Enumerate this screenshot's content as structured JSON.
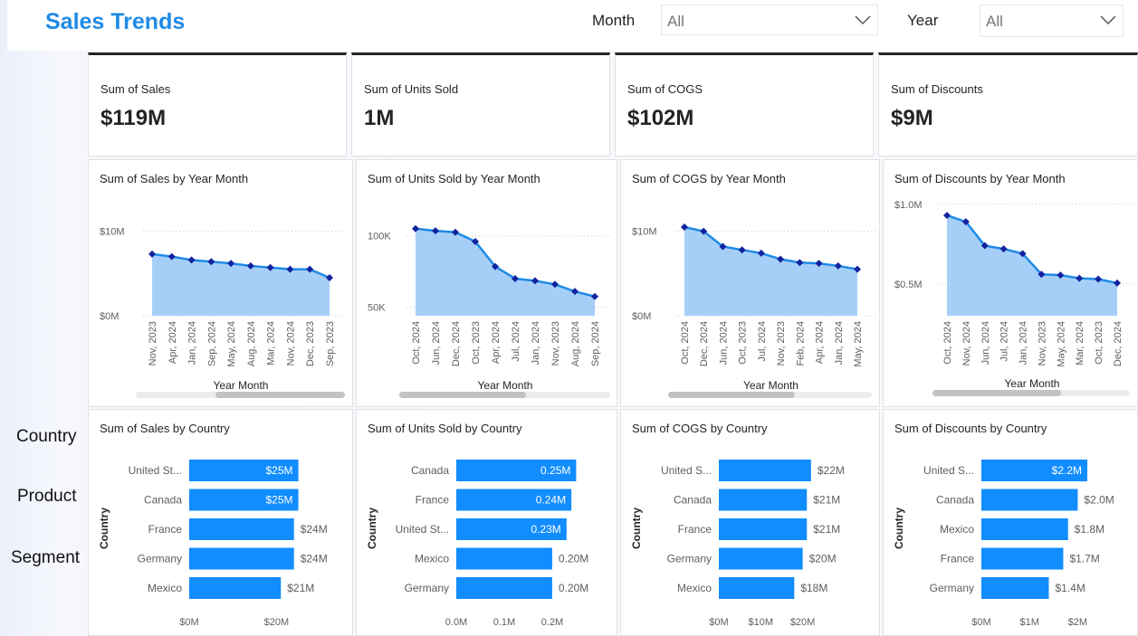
{
  "header": {
    "title": "Sales Trends",
    "month_label": "Month",
    "month_value": "All",
    "year_label": "Year",
    "year_value": "All"
  },
  "nav": {
    "country": "Country",
    "product": "Product",
    "segment": "Segment"
  },
  "kpis": [
    {
      "label": "Sum of Sales",
      "value": "$119M"
    },
    {
      "label": "Sum of Units Sold",
      "value": "1M"
    },
    {
      "label": "Sum of COGS",
      "value": "$102M"
    },
    {
      "label": "Sum of Discounts",
      "value": "$9M"
    }
  ],
  "colors": {
    "accent": "#1f8ae6",
    "bar": "#118dff",
    "line": "#1f8ae6",
    "area": "#a6cff7",
    "marker": "#12239e"
  },
  "chart_data": [
    {
      "type": "area",
      "title": "Sum of Sales by Year Month",
      "xlabel": "Year Month",
      "categories": [
        "Nov, 2023",
        "Apr, 2024",
        "Jan, 2024",
        "Sep, 2024",
        "May, 2024",
        "Aug, 2024",
        "Mar, 2024",
        "Nov, 2024",
        "Dec, 2023",
        "Sep, 2023"
      ],
      "values": [
        7.3,
        7.0,
        6.6,
        6.4,
        6.2,
        5.9,
        5.7,
        5.5,
        5.5,
        4.5
      ],
      "ylim": [
        0,
        12
      ],
      "yticks": [
        {
          "v": 0,
          "label": "$0M"
        },
        {
          "v": 10,
          "label": "$10M"
        }
      ],
      "scroll": {
        "start": 0.38,
        "end": 1.0
      }
    },
    {
      "type": "area",
      "title": "Sum of Units Sold by Year Month",
      "xlabel": "Year Month",
      "categories": [
        "Oct, 2024",
        "Jun, 2024",
        "Dec, 2024",
        "Oct, 2023",
        "Apr, 2024",
        "Jul, 2024",
        "Jan, 2024",
        "Nov, 2023",
        "Aug, 2024",
        "Sep, 2024"
      ],
      "values": [
        105000,
        103500,
        102500,
        96000,
        78500,
        70000,
        68500,
        66000,
        61000,
        57500
      ],
      "ylim": [
        44000,
        115000
      ],
      "yticks": [
        {
          "v": 50000,
          "label": "50K"
        },
        {
          "v": 100000,
          "label": "100K"
        }
      ],
      "scroll": {
        "start": 0.0,
        "end": 0.6
      }
    },
    {
      "type": "area",
      "title": "Sum of COGS by Year Month",
      "xlabel": "Year Month",
      "categories": [
        "Oct, 2024",
        "Dec, 2024",
        "Jun, 2024",
        "Oct, 2023",
        "Jul, 2024",
        "Nov, 2023",
        "Feb, 2024",
        "Apr, 2024",
        "Jan, 2024",
        "May, 2024"
      ],
      "values": [
        10.5,
        10.0,
        8.2,
        7.8,
        7.4,
        6.7,
        6.3,
        6.2,
        5.9,
        5.5
      ],
      "ylim": [
        0,
        12
      ],
      "yticks": [
        {
          "v": 0,
          "label": "$0M"
        },
        {
          "v": 10,
          "label": "$10M"
        }
      ],
      "scroll": {
        "start": 0.0,
        "end": 0.62
      }
    },
    {
      "type": "area",
      "title": "Sum of Discounts by Year Month",
      "xlabel": "Year Month",
      "categories": [
        "Oct, 2024",
        "Nov, 2024",
        "Jun, 2024",
        "Jul, 2024",
        "Jan, 2024",
        "Nov, 2023",
        "May, 2024",
        "Mar, 2024",
        "Oct, 2023",
        "Dec, 2024"
      ],
      "values": [
        0.93,
        0.89,
        0.74,
        0.72,
        0.69,
        0.56,
        0.555,
        0.535,
        0.53,
        0.505
      ],
      "ylim": [
        0.3,
        1.05
      ],
      "yticks": [
        {
          "v": 0.5,
          "label": "$0.5M"
        },
        {
          "v": 1.0,
          "label": "$1.0M"
        }
      ],
      "scroll": {
        "start": 0.0,
        "end": 0.65
      }
    },
    {
      "type": "bar",
      "title": "Sum of Sales by Country",
      "ylabel": "Country",
      "categories": [
        "United St...",
        "Canada",
        "France",
        "Germany",
        "Mexico"
      ],
      "values": [
        25,
        25,
        24,
        24,
        21
      ],
      "labels": [
        "$25M",
        "$25M",
        "$24M",
        "$24M",
        "$21M"
      ],
      "labels_inside": [
        true,
        true,
        false,
        false,
        false
      ],
      "xlim": [
        0,
        28
      ],
      "xticks": [
        {
          "v": 0,
          "label": "$0M"
        },
        {
          "v": 20,
          "label": "$20M"
        }
      ]
    },
    {
      "type": "bar",
      "title": "Sum of Units Sold by Country",
      "ylabel": "Country",
      "categories": [
        "Canada",
        "France",
        "United St...",
        "Mexico",
        "Germany"
      ],
      "values": [
        0.25,
        0.24,
        0.23,
        0.2,
        0.2
      ],
      "labels": [
        "0.25M",
        "0.24M",
        "0.23M",
        "0.20M",
        "0.20M"
      ],
      "labels_inside": [
        true,
        true,
        true,
        false,
        false
      ],
      "xlim": [
        0,
        0.27
      ],
      "xticks": [
        {
          "v": 0,
          "label": "0.0M"
        },
        {
          "v": 0.1,
          "label": "0.1M"
        },
        {
          "v": 0.2,
          "label": "0.2M"
        }
      ]
    },
    {
      "type": "bar",
      "title": "Sum of COGS by Country",
      "ylabel": "Country",
      "categories": [
        "United S...",
        "Canada",
        "France",
        "Germany",
        "Mexico"
      ],
      "values": [
        22,
        21,
        21,
        20,
        18
      ],
      "labels": [
        "$22M",
        "$21M",
        "$21M",
        "$20M",
        "$18M"
      ],
      "labels_inside": [
        false,
        false,
        false,
        false,
        false
      ],
      "xlim": [
        0,
        27
      ],
      "xticks": [
        {
          "v": 0,
          "label": "$0M"
        },
        {
          "v": 10,
          "label": "$10M"
        },
        {
          "v": 20,
          "label": "$20M"
        }
      ]
    },
    {
      "type": "bar",
      "title": "Sum of Discounts by Country",
      "ylabel": "Country",
      "categories": [
        "United S...",
        "Canada",
        "Mexico",
        "France",
        "Germany"
      ],
      "values": [
        2.2,
        2.0,
        1.8,
        1.7,
        1.4
      ],
      "labels": [
        "$2.2M",
        "$2.0M",
        "$1.8M",
        "$1.7M",
        "$1.4M"
      ],
      "labels_inside": [
        true,
        false,
        false,
        false,
        false
      ],
      "xlim": [
        0,
        2.5
      ],
      "xticks": [
        {
          "v": 0,
          "label": "$0M"
        },
        {
          "v": 1,
          "label": "$1M"
        },
        {
          "v": 2,
          "label": "$2M"
        }
      ]
    }
  ]
}
